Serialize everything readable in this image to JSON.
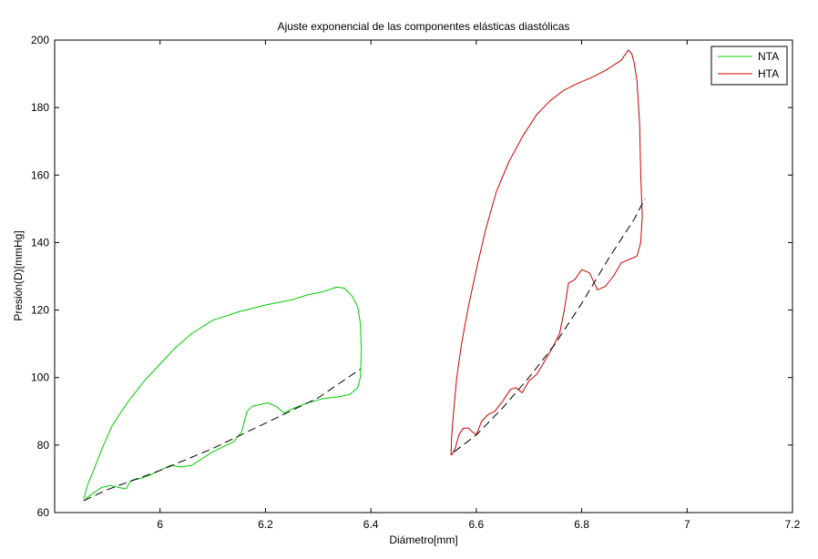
{
  "chart_data": {
    "type": "line",
    "title": "Ajuste exponencial de las componentes elásticas diastólicas",
    "xlabel": "Diámetro[mm]",
    "ylabel": "Presión(D)[mmHg]",
    "xlim": [
      5.8,
      7.2
    ],
    "ylim": [
      60,
      200
    ],
    "xticks": [
      6,
      6.2,
      6.4,
      6.6,
      6.8,
      7,
      7.2
    ],
    "yticks": [
      60,
      80,
      100,
      120,
      140,
      160,
      180,
      200
    ],
    "grid": false,
    "legend_position": "top-right",
    "series": [
      {
        "name": "NTA",
        "color": "#00cc00",
        "points": [
          [
            5.855,
            64
          ],
          [
            5.862,
            68
          ],
          [
            5.875,
            73
          ],
          [
            5.89,
            79
          ],
          [
            5.91,
            86
          ],
          [
            5.94,
            93
          ],
          [
            5.97,
            99
          ],
          [
            6.0,
            104
          ],
          [
            6.03,
            109
          ],
          [
            6.06,
            113
          ],
          [
            6.1,
            117
          ],
          [
            6.15,
            119.5
          ],
          [
            6.2,
            121.5
          ],
          [
            6.25,
            123
          ],
          [
            6.28,
            124.5
          ],
          [
            6.31,
            125.5
          ],
          [
            6.335,
            126.8
          ],
          [
            6.35,
            126.5
          ],
          [
            6.365,
            124
          ],
          [
            6.375,
            121
          ],
          [
            6.38,
            116
          ],
          [
            6.382,
            108
          ],
          [
            6.38,
            100
          ],
          [
            6.375,
            97
          ],
          [
            6.36,
            95
          ],
          [
            6.34,
            94.3
          ],
          [
            6.31,
            93.8
          ],
          [
            6.28,
            92.5
          ],
          [
            6.255,
            91
          ],
          [
            6.235,
            89.5
          ],
          [
            6.22,
            91.5
          ],
          [
            6.205,
            92.5
          ],
          [
            6.19,
            92
          ],
          [
            6.175,
            91.5
          ],
          [
            6.165,
            90
          ],
          [
            6.16,
            87
          ],
          [
            6.155,
            84
          ],
          [
            6.14,
            81
          ],
          [
            6.12,
            79.5
          ],
          [
            6.1,
            78
          ],
          [
            6.08,
            76
          ],
          [
            6.06,
            74
          ],
          [
            6.04,
            73.5
          ],
          [
            6.02,
            74
          ],
          [
            6.0,
            72.5
          ],
          [
            5.98,
            71
          ],
          [
            5.96,
            70
          ],
          [
            5.945,
            69.5
          ],
          [
            5.935,
            67
          ],
          [
            5.92,
            67.5
          ],
          [
            5.905,
            68
          ],
          [
            5.89,
            67.5
          ],
          [
            5.875,
            66
          ],
          [
            5.862,
            64.5
          ],
          [
            5.857,
            63.5
          ]
        ]
      },
      {
        "name": "HTA",
        "color": "#cc0000",
        "points": [
          [
            6.552,
            77
          ],
          [
            6.553,
            82
          ],
          [
            6.557,
            90
          ],
          [
            6.563,
            100
          ],
          [
            6.572,
            110
          ],
          [
            6.585,
            121
          ],
          [
            6.6,
            132
          ],
          [
            6.618,
            144
          ],
          [
            6.638,
            155
          ],
          [
            6.662,
            164
          ],
          [
            6.69,
            172
          ],
          [
            6.715,
            178
          ],
          [
            6.74,
            182
          ],
          [
            6.765,
            185
          ],
          [
            6.79,
            187
          ],
          [
            6.82,
            189
          ],
          [
            6.845,
            191
          ],
          [
            6.86,
            192.5
          ],
          [
            6.875,
            194
          ],
          [
            6.888,
            197
          ],
          [
            6.895,
            196
          ],
          [
            6.9,
            193
          ],
          [
            6.905,
            188
          ],
          [
            6.91,
            175
          ],
          [
            6.912,
            160
          ],
          [
            6.915,
            148
          ],
          [
            6.912,
            140
          ],
          [
            6.905,
            136
          ],
          [
            6.89,
            135
          ],
          [
            6.875,
            134
          ],
          [
            6.86,
            130
          ],
          [
            6.845,
            127
          ],
          [
            6.83,
            126
          ],
          [
            6.815,
            131
          ],
          [
            6.8,
            132
          ],
          [
            6.787,
            129
          ],
          [
            6.775,
            128
          ],
          [
            6.767,
            120
          ],
          [
            6.758,
            113
          ],
          [
            6.745,
            109
          ],
          [
            6.73,
            105
          ],
          [
            6.715,
            101
          ],
          [
            6.7,
            99
          ],
          [
            6.687,
            95.5
          ],
          [
            6.675,
            97
          ],
          [
            6.665,
            96.5
          ],
          [
            6.65,
            93
          ],
          [
            6.635,
            90
          ],
          [
            6.622,
            89
          ],
          [
            6.61,
            87
          ],
          [
            6.6,
            83
          ],
          [
            6.592,
            84
          ],
          [
            6.585,
            85
          ],
          [
            6.575,
            85
          ],
          [
            6.567,
            83
          ],
          [
            6.56,
            79
          ],
          [
            6.553,
            77
          ]
        ]
      }
    ],
    "fits": [
      {
        "style": "dashed",
        "color": "#000000",
        "points": [
          [
            5.855,
            63.5
          ],
          [
            5.9,
            66.8
          ],
          [
            6.0,
            72.5
          ],
          [
            6.1,
            79
          ],
          [
            6.2,
            86.5
          ],
          [
            6.3,
            94
          ],
          [
            6.38,
            102.5
          ]
        ]
      },
      {
        "style": "dashed",
        "color": "#000000",
        "points": [
          [
            6.558,
            78
          ],
          [
            6.6,
            83
          ],
          [
            6.65,
            91
          ],
          [
            6.7,
            100
          ],
          [
            6.75,
            110
          ],
          [
            6.8,
            122
          ],
          [
            6.85,
            135
          ],
          [
            6.9,
            147
          ],
          [
            6.92,
            153
          ]
        ]
      }
    ]
  }
}
